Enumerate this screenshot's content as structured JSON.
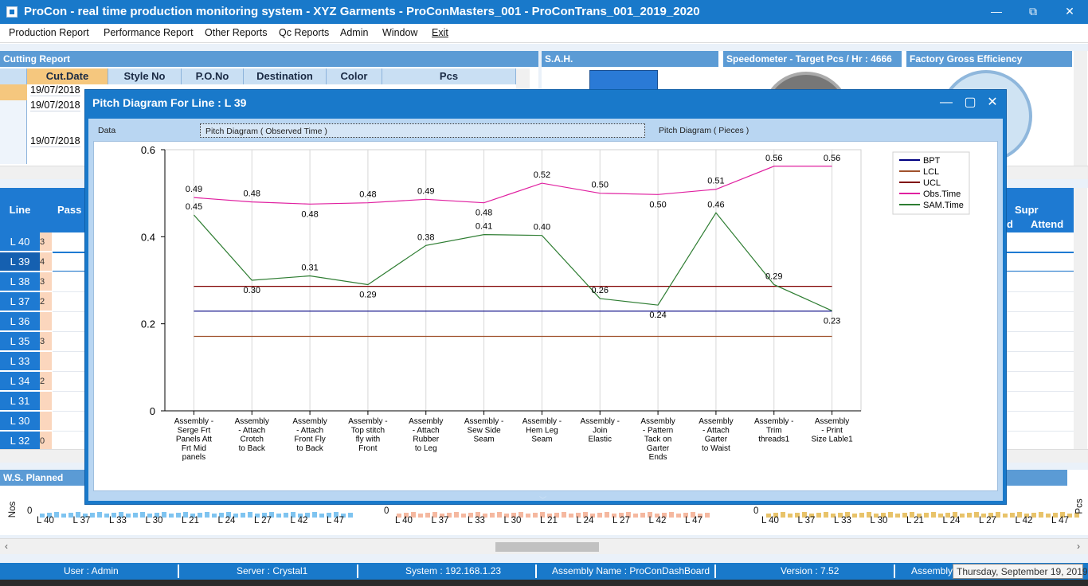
{
  "window": {
    "title": "ProCon - real time production monitoring system - XYZ Garments - ProConMasters_001 - ProConTrans_001_2019_2020",
    "minimize": "—",
    "maximize": "⧉",
    "close": "✕"
  },
  "menu": [
    "Production Report",
    "Performance Report",
    "Other Reports",
    "Qc Reports",
    "Admin",
    "Window",
    "Exit"
  ],
  "cutting": {
    "title": "Cutting Report",
    "columns": [
      "Cut.Date",
      "Style No",
      "P.O.No",
      "Destination",
      "Color",
      "Pcs"
    ],
    "dates": [
      "19/07/2018",
      "19/07/2018",
      "19/07/2018"
    ]
  },
  "sah_title": "S.A.H.",
  "speedometer_title": "Speedometer - Target Pcs / Hr : 4666",
  "factory_eff_title": "Factory Gross Efficiency",
  "lines_panel": {
    "header": "Line",
    "col2": "Pass",
    "right_headers": {
      "supr": "Supr",
      "d": "d",
      "attend": "Attend"
    },
    "lines": [
      "L 40",
      "L 39",
      "L 38",
      "L 37",
      "L 36",
      "L 35",
      "L 33",
      "L 34",
      "L 31",
      "L 30",
      "L 32"
    ],
    "peach_vals": [
      "3",
      "4",
      "3",
      "2",
      "",
      "3",
      "",
      "2",
      "",
      "",
      "0"
    ]
  },
  "ws_planned": {
    "title": "W.S. Planned",
    "ylabel": "Nos",
    "zero": "0",
    "xlabels": [
      "L 40",
      "L 37",
      "L 33",
      "L 30",
      "L 21",
      "L 24",
      "L 27",
      "L 42",
      "L 47"
    ]
  },
  "mid_chart": {
    "zero": "0",
    "xlabels": [
      "L 40",
      "L 37",
      "L 33",
      "L 30",
      "L 21",
      "L 24",
      "L 27",
      "L 42",
      "L 47"
    ]
  },
  "right_chart": {
    "ylabel": "Pcs",
    "zero": "0",
    "xlabels": [
      "L 40",
      "L 37",
      "L 33",
      "L 30",
      "L 21",
      "L 24",
      "L 27",
      "L 42",
      "L 47"
    ]
  },
  "status": {
    "user": "User : Admin",
    "server": "Server : Crystal1",
    "system": "System : 192.168.1.23",
    "assembly_name": "Assembly Name : ProConDashBoard",
    "version": "Version : 7.52",
    "assembly": "Assembly",
    "date_tooltip": "Thursday, September 19, 2019"
  },
  "dialog": {
    "title": "Pitch Diagram For Line : L 39",
    "tabs": [
      "Data",
      "Pitch Diagram ( Observed Time )",
      "Pitch Diagram ( Pieces )"
    ]
  },
  "colors": {
    "titlebar": "#1979ca",
    "bpt": "#000080",
    "lcl": "#a0522d",
    "ucl": "#800000",
    "obs": "#e020a0",
    "sam": "#2e7d32"
  },
  "chart_data": {
    "type": "line",
    "title": "",
    "xlabel": "",
    "ylabel": "",
    "ylim": [
      0,
      0.6
    ],
    "yticks": [
      "0",
      "0.2",
      "0.4",
      "0.6"
    ],
    "categories": [
      [
        "Assembly -",
        "Serge Frt",
        "Panels Att",
        "Frt Mid",
        "panels"
      ],
      [
        "Assembly",
        "- Attach",
        "Crotch",
        "to Back"
      ],
      [
        "Assembly",
        "- Attach",
        "Front Fly",
        "to Back"
      ],
      [
        "Assembly -",
        "Top stitch",
        "fly with",
        "Front"
      ],
      [
        "Assembly",
        "- Attach",
        "Rubber",
        "to Leg"
      ],
      [
        "Assembly -",
        "Sew Side",
        "Seam"
      ],
      [
        "Assembly -",
        "Hem Leg",
        "Seam"
      ],
      [
        "Assembly -",
        "Join",
        "Elastic"
      ],
      [
        "Assembly",
        "- Pattern",
        "Tack on",
        "Garter",
        "Ends"
      ],
      [
        "Assembly",
        "- Attach",
        "Garter",
        "to Waist"
      ],
      [
        "Assembly -",
        "Trim",
        "threads1"
      ],
      [
        "Assembly",
        "- Print",
        "Size Lable1"
      ]
    ],
    "grid": true,
    "legend_position": "top-right",
    "series": [
      {
        "name": "BPT",
        "color": "#000080",
        "values": [
          0.229,
          0.229,
          0.229,
          0.229,
          0.229,
          0.229,
          0.229,
          0.229,
          0.229,
          0.229,
          0.229,
          0.229
        ],
        "labels": false
      },
      {
        "name": "LCL",
        "color": "#a0522d",
        "values": [
          0.171,
          0.171,
          0.171,
          0.171,
          0.171,
          0.171,
          0.171,
          0.171,
          0.171,
          0.171,
          0.171,
          0.171
        ],
        "labels": false
      },
      {
        "name": "UCL",
        "color": "#800000",
        "values": [
          0.286,
          0.286,
          0.286,
          0.286,
          0.286,
          0.286,
          0.286,
          0.286,
          0.286,
          0.286,
          0.286,
          0.286
        ],
        "labels": false
      },
      {
        "name": "Obs.Time",
        "color": "#e020a0",
        "values": [
          0.49,
          0.48,
          0.475,
          0.478,
          0.486,
          0.478,
          0.523,
          0.5,
          0.497,
          0.509,
          0.562,
          0.562
        ],
        "data_labels": [
          "0.49",
          "0.48",
          "0.48",
          "0.48",
          "0.49",
          "0.48",
          "0.52",
          "0.50",
          "0.50",
          "0.51",
          "0.56",
          "0.56"
        ],
        "label_pos": [
          "above",
          "above",
          "below",
          "above",
          "above",
          "below",
          "above",
          "above",
          "below",
          "above",
          "above",
          "above"
        ]
      },
      {
        "name": "SAM.Time",
        "color": "#2e7d32",
        "values": [
          0.45,
          0.3,
          0.31,
          0.29,
          0.38,
          0.405,
          0.403,
          0.258,
          0.243,
          0.455,
          0.29,
          0.23
        ],
        "data_labels": [
          "0.45",
          "0.30",
          "0.31",
          "0.29",
          "0.38",
          "0.41",
          "0.40",
          "0.26",
          "0.24",
          "0.46",
          "0.29",
          "0.23"
        ],
        "label_pos": [
          "above",
          "below",
          "above",
          "below",
          "above",
          "above",
          "above",
          "above",
          "below",
          "above",
          "above",
          "below"
        ]
      }
    ]
  }
}
